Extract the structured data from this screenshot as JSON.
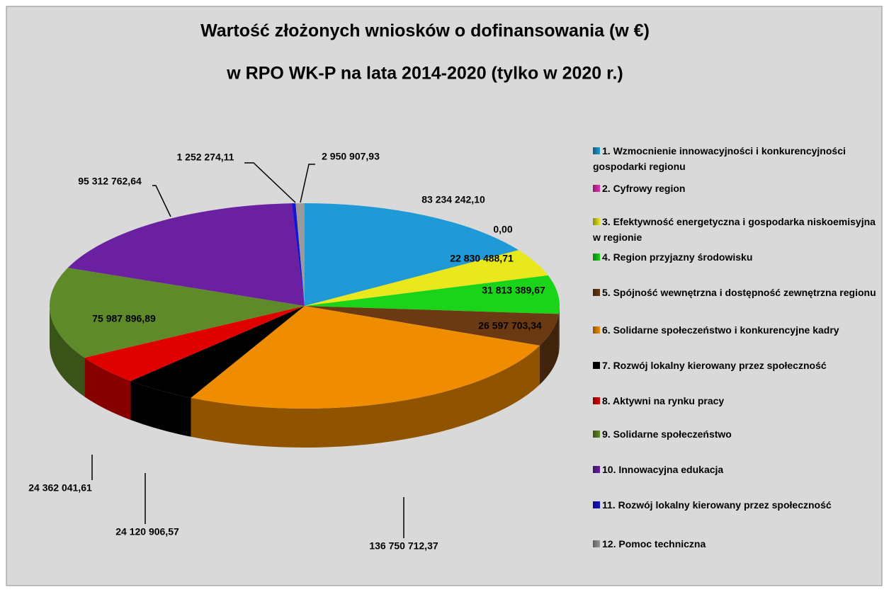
{
  "chart_data": {
    "type": "pie",
    "title": "Wartość złożonych wniosków o dofinansowania (w €)",
    "subtitle": "w RPO WK-P na lata 2014-2020 (tylko w 2020 r.)",
    "categories": [
      "1. Wzmocnienie innowacyjności i konkurencyjności gospodarki regionu",
      "2. Cyfrowy region",
      "3. Efektywność energetyczna i gospodarka niskoemisyjna w regionie",
      "4. Region przyjazny środowisku",
      "5. Spójność wewnętrzna i dostępność zewnętrzna regionu",
      "6. Solidarne społeczeństwo i konkurencyjne kadry",
      "7. Rozwój lokalny kierowany przez społeczność",
      "8. Aktywni na rynku pracy",
      "9. Solidarne społeczeństwo",
      "10. Innowacyjna edukacja",
      "11. Rozwój lokalny kierowany przez społeczność",
      "12.  Pomoc techniczna"
    ],
    "values": [
      83234242.1,
      0,
      22830488.71,
      31813389.67,
      26597703.34,
      136750712.37,
      24120906.57,
      24362041.61,
      75987896.89,
      95312762.64,
      1252274.11,
      2950907.93
    ],
    "value_labels": [
      "83 234 242,10",
      "0,00",
      "22 830 488,71",
      "31 813 389,67",
      "26 597 703,34",
      "136 750 712,37",
      "24 120 906,57",
      "24 362 041,61",
      "75 987 896,89",
      "95 312 762,64",
      "1 252 274,11",
      "2 950 907,93"
    ],
    "colors": [
      "#1f9ad6",
      "#e42fb4",
      "#e8e81c",
      "#1ad41a",
      "#6b3a12",
      "#f08c00",
      "#000000",
      "#e00000",
      "#5f8a2a",
      "#6a20a0",
      "#1414d2",
      "#9a9a9a"
    ],
    "legend": "right"
  }
}
